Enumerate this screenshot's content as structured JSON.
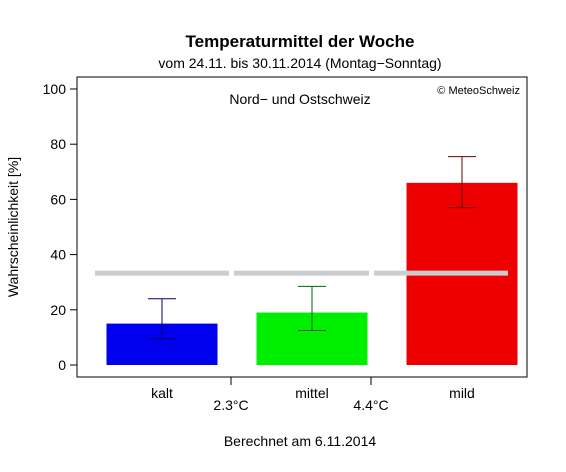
{
  "chart_data": {
    "type": "bar",
    "title": "Temperaturmittel der Woche",
    "subtitle": "vom 24.11. bis 30.11.2014 (Montag−Sonntag)",
    "region": "Nord− und Ostschweiz",
    "copyright": "© MeteoSchweiz",
    "ylabel": "Wahrscheinlichkeit [%]",
    "footer": "Berechnet am 6.11.2014",
    "ylim": [
      0,
      100
    ],
    "yticks": [
      0,
      20,
      40,
      60,
      80,
      100
    ],
    "categories": [
      "kalt",
      "mittel",
      "mild"
    ],
    "values": [
      15,
      19,
      66
    ],
    "error_low": [
      9.5,
      12.5,
      57
    ],
    "error_high": [
      24,
      28.5,
      75.5
    ],
    "colors": [
      "#0000ee",
      "#00ee00",
      "#ee0000"
    ],
    "reference_line": 33.3,
    "reference_color": "#cccccc",
    "thresholds": [
      "2.3°C",
      "4.4°C"
    ],
    "grid": false
  }
}
